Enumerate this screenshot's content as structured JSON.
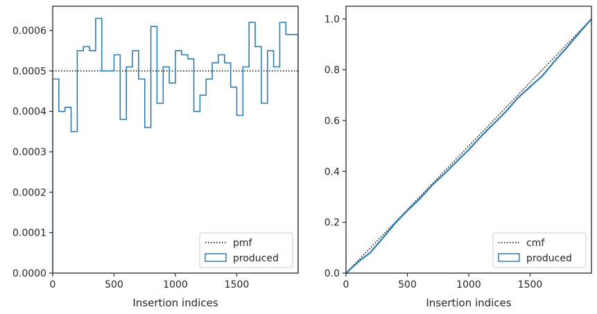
{
  "chart_data": [
    {
      "type": "line",
      "xlabel": "Insertion indices",
      "ylabel": "",
      "xlim": [
        0,
        2000
      ],
      "ylim": [
        0,
        0.00066
      ],
      "xticks": [
        0,
        500,
        1000,
        1500
      ],
      "xtick_labels": [
        "0",
        "500",
        "1000",
        "1500"
      ],
      "yticks": [
        0,
        0.0001,
        0.0002,
        0.0003,
        0.0004,
        0.0005,
        0.0006
      ],
      "ytick_labels": [
        "0.0000",
        "0.0001",
        "0.0002",
        "0.0003",
        "0.0004",
        "0.0005",
        "0.0006"
      ],
      "grid": false,
      "legend_position": "lower-right",
      "series": [
        {
          "name": "pmf",
          "style": "dotted",
          "color": "#000000",
          "x": [
            0,
            2000
          ],
          "y": [
            0.0005,
            0.0005
          ]
        },
        {
          "name": "produced",
          "style": "step-histogram",
          "color": "#2b7bb1",
          "bin_edges": [
            0,
            50,
            100,
            150,
            200,
            250,
            300,
            350,
            400,
            450,
            500,
            550,
            600,
            650,
            700,
            750,
            800,
            850,
            900,
            950,
            1000,
            1050,
            1100,
            1150,
            1200,
            1250,
            1300,
            1350,
            1400,
            1450,
            1500,
            1550,
            1600,
            1650,
            1700,
            1750,
            1800,
            1850,
            1900,
            1950,
            2000
          ],
          "values": [
            0.00048,
            0.0004,
            0.00041,
            0.00035,
            0.00055,
            0.00056,
            0.00055,
            0.00063,
            0.0005,
            0.0005,
            0.00054,
            0.00038,
            0.00051,
            0.00055,
            0.00048,
            0.00036,
            0.00061,
            0.00042,
            0.00051,
            0.00047,
            0.00055,
            0.00054,
            0.00053,
            0.0004,
            0.00044,
            0.00048,
            0.00052,
            0.00054,
            0.00052,
            0.00046,
            0.00039,
            0.00051,
            0.00062,
            0.00056,
            0.00042,
            0.00055,
            0.00051,
            0.00062,
            0.00059,
            0.00059
          ]
        }
      ]
    },
    {
      "type": "line",
      "xlabel": "Insertion indices",
      "ylabel": "",
      "xlim": [
        0,
        2000
      ],
      "ylim": [
        0,
        1.05
      ],
      "xticks": [
        0,
        500,
        1000,
        1500
      ],
      "xtick_labels": [
        "0",
        "500",
        "1000",
        "1500"
      ],
      "yticks": [
        0,
        0.2,
        0.4,
        0.6,
        0.8,
        1.0
      ],
      "ytick_labels": [
        "0.0",
        "0.2",
        "0.4",
        "0.6",
        "0.8",
        "1.0"
      ],
      "grid": false,
      "legend_position": "lower-right",
      "series": [
        {
          "name": "cmf",
          "style": "dotted",
          "color": "#000000",
          "x": [
            0,
            2000
          ],
          "y": [
            0,
            1.0
          ]
        },
        {
          "name": "produced",
          "style": "line",
          "color": "#2b7bb1",
          "x": [
            0,
            100,
            200,
            300,
            400,
            500,
            600,
            700,
            800,
            900,
            1000,
            1100,
            1200,
            1300,
            1400,
            1500,
            1600,
            1700,
            1800,
            1900,
            2000
          ],
          "y": [
            0,
            0.044,
            0.082,
            0.138,
            0.196,
            0.246,
            0.292,
            0.345,
            0.39,
            0.438,
            0.485,
            0.538,
            0.586,
            0.634,
            0.689,
            0.733,
            0.776,
            0.834,
            0.888,
            0.945,
            1.0
          ]
        }
      ]
    }
  ],
  "colors": {
    "axes_edge": "#262626",
    "produced": "#2b7bb1",
    "reference": "#000000"
  }
}
